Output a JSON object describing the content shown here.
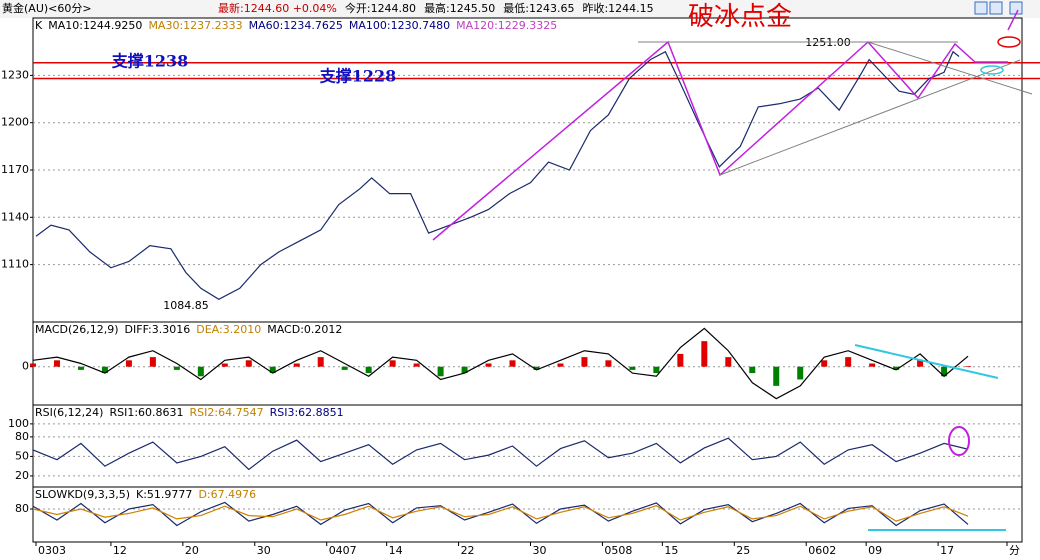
{
  "header": {
    "symbol": "黄金(AU)<60分>",
    "quotes": [
      "最新:1244.60 +0.04%",
      "今开:1244.80",
      "最高:1245.50",
      "最低:1243.65",
      "昨收:1244.15"
    ]
  },
  "chart_data": [
    {
      "type": "line",
      "title": "破冰点金",
      "legend": [
        {
          "label": "K",
          "color": "#000000"
        },
        {
          "label": "MA10:1244.9250",
          "color": "#000000"
        },
        {
          "label": "MA30:1237.2333",
          "color": "#c08000"
        },
        {
          "label": "MA60:1234.7625",
          "color": "#000080"
        },
        {
          "label": "MA100:1230.7480",
          "color": "#000080"
        },
        {
          "label": "MA120:1229.3325",
          "color": "#c040c0"
        }
      ],
      "annotations": [
        "支撑1238",
        "支撑1228",
        "1251.00",
        "1084.85"
      ],
      "support_lines": [
        1238,
        1228
      ],
      "support_color": "#e00000",
      "x": [
        1,
        6,
        12,
        19,
        26,
        32,
        39,
        46,
        51,
        56,
        62,
        69,
        76,
        82,
        89,
        96,
        102,
        109,
        113,
        119,
        126,
        132,
        139,
        146,
        152,
        159,
        166,
        172,
        179,
        186,
        192,
        199,
        206,
        211,
        216,
        222,
        229,
        236,
        242,
        249,
        256,
        262,
        269,
        276,
        279,
        284,
        289,
        294,
        299,
        304,
        307,
        309
      ],
      "series": [
        {
          "color": "#1a2a6c",
          "values": [
            1128,
            1135,
            1132,
            1118,
            1108,
            1112,
            1122,
            1120,
            1105,
            1095,
            1088,
            1095,
            1110,
            1118,
            1125,
            1132,
            1148,
            1158,
            1165,
            1155,
            1155,
            1130,
            1135,
            1140,
            1145,
            1155,
            1162,
            1175,
            1170,
            1195,
            1205,
            1228,
            1240,
            1245,
            1225,
            1200,
            1172,
            1185,
            1210,
            1212,
            1215,
            1222,
            1208,
            1230,
            1240,
            1230,
            1220,
            1218,
            1228,
            1232,
            1245,
            1242
          ]
        }
      ],
      "xlim": [
        0,
        330
      ],
      "xticks": [
        {
          "value": 1,
          "label": "0303"
        },
        {
          "value": 26,
          "label": "12"
        },
        {
          "value": 50,
          "label": "20"
        },
        {
          "value": 74,
          "label": "30"
        },
        {
          "value": 98,
          "label": "0407"
        },
        {
          "value": 118,
          "label": "14"
        },
        {
          "value": 142,
          "label": "22"
        },
        {
          "value": 166,
          "label": "30"
        },
        {
          "value": 190,
          "label": "0508"
        },
        {
          "value": 210,
          "label": "15"
        },
        {
          "value": 234,
          "label": "25"
        },
        {
          "value": 258,
          "label": "0602"
        },
        {
          "value": 278,
          "label": "09"
        },
        {
          "value": 302,
          "label": "17"
        },
        {
          "value": 325,
          "label": "分"
        }
      ],
      "ylim": [
        1073.6,
        1266.4
      ],
      "yticks": [
        1110,
        1140,
        1170,
        1200,
        1230
      ],
      "grid": true
    },
    {
      "type": "macd",
      "legend": [
        {
          "label": "MACD(26,12,9)",
          "color": "#000000"
        },
        {
          "label": "DIFF:3.3016",
          "color": "#000000"
        },
        {
          "label": "DEA:3.2010",
          "color": "#c08000"
        },
        {
          "label": "MACD:0.2012",
          "color": "#000000"
        }
      ],
      "x": [
        0,
        8,
        16,
        24,
        32,
        40,
        48,
        56,
        64,
        72,
        80,
        88,
        96,
        104,
        112,
        120,
        128,
        136,
        144,
        152,
        160,
        168,
        176,
        184,
        192,
        200,
        208,
        216,
        224,
        232,
        240,
        248,
        256,
        264,
        272,
        280,
        288,
        296,
        304,
        312
      ],
      "series": [
        {
          "color": "#000000",
          "values": [
            2,
            3,
            1,
            -2,
            3,
            5,
            1,
            -4,
            2,
            3,
            -2,
            2,
            5,
            1,
            -3,
            3,
            2,
            -4,
            -2,
            2,
            4,
            -1,
            2,
            5,
            4,
            -2,
            -3,
            6,
            12,
            5,
            -5,
            -10,
            -6,
            3,
            5,
            2,
            -1,
            4,
            -3,
            3.3
          ]
        }
      ],
      "histogram": [
        1,
        2,
        -1,
        -2,
        2,
        3,
        -1,
        -3,
        1,
        2,
        -2,
        1,
        3,
        -1,
        -2,
        2,
        1,
        -3,
        -2,
        1,
        2,
        -1,
        1,
        3,
        2,
        -1,
        -2,
        4,
        8,
        3,
        -2,
        -6,
        -4,
        2,
        3,
        1,
        -1,
        2,
        -3,
        0.2
      ],
      "up_color": "#e00000",
      "down_color": "#008000",
      "xlim": [
        0,
        330
      ],
      "ylim": [
        -12,
        14
      ],
      "yticks": [
        0
      ],
      "grid": true
    },
    {
      "type": "line",
      "legend": [
        {
          "label": "RSI(6,12,24)",
          "color": "#000000"
        },
        {
          "label": "RSI1:60.8631",
          "color": "#000000"
        },
        {
          "label": "RSI2:64.7547",
          "color": "#c08000"
        },
        {
          "label": "RSI3:62.8851",
          "color": "#000080"
        }
      ],
      "x": [
        0,
        8,
        16,
        24,
        32,
        40,
        48,
        56,
        64,
        72,
        80,
        88,
        96,
        104,
        112,
        120,
        128,
        136,
        144,
        152,
        160,
        168,
        176,
        184,
        192,
        200,
        208,
        216,
        224,
        232,
        240,
        248,
        256,
        264,
        272,
        280,
        288,
        296,
        304,
        312
      ],
      "series": [
        {
          "color": "#1a2a6c",
          "values": [
            60,
            45,
            70,
            35,
            55,
            72,
            40,
            50,
            65,
            30,
            58,
            75,
            42,
            55,
            68,
            38,
            60,
            70,
            45,
            52,
            66,
            35,
            62,
            74,
            48,
            55,
            70,
            40,
            63,
            78,
            45,
            50,
            72,
            38,
            60,
            68,
            42,
            55,
            70,
            61
          ]
        }
      ],
      "xlim": [
        0,
        330
      ],
      "ylim": [
        3,
        129
      ],
      "yticks": [
        20,
        50,
        80,
        100
      ],
      "grid": true
    },
    {
      "type": "line",
      "legend": [
        {
          "label": "SLOWKD(9,3,3,5)",
          "color": "#000000"
        },
        {
          "label": "K:51.9777",
          "color": "#000000"
        },
        {
          "label": "D:67.4976",
          "color": "#c08000"
        }
      ],
      "x": [
        0,
        8,
        16,
        24,
        32,
        40,
        48,
        56,
        64,
        72,
        80,
        88,
        96,
        104,
        112,
        120,
        128,
        136,
        144,
        152,
        160,
        168,
        176,
        184,
        192,
        200,
        208,
        216,
        224,
        232,
        240,
        248,
        256,
        264,
        272,
        280,
        288,
        296,
        304,
        312
      ],
      "series": [
        {
          "color": "#1a2a6c",
          "values": [
            85,
            60,
            90,
            55,
            80,
            88,
            50,
            75,
            92,
            58,
            70,
            85,
            52,
            78,
            90,
            55,
            82,
            86,
            60,
            74,
            89,
            54,
            80,
            87,
            58,
            76,
            91,
            53,
            79,
            88,
            57,
            72,
            90,
            55,
            81,
            86,
            50,
            77,
            89,
            52
          ]
        },
        {
          "color": "#d08000",
          "values": [
            80,
            70,
            80,
            65,
            72,
            82,
            62,
            68,
            85,
            68,
            66,
            80,
            60,
            70,
            85,
            64,
            76,
            84,
            66,
            70,
            84,
            62,
            74,
            84,
            64,
            72,
            86,
            60,
            74,
            84,
            62,
            68,
            85,
            62,
            76,
            84,
            58,
            72,
            84,
            67
          ]
        }
      ],
      "xlim": [
        0,
        330
      ],
      "ylim": [
        20,
        120
      ],
      "yticks": [
        80
      ],
      "grid": true
    }
  ]
}
